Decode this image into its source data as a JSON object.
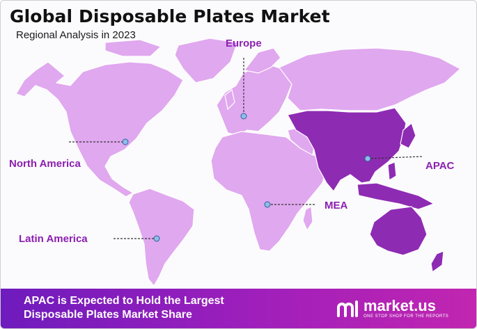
{
  "header": {
    "title": "Global Disposable Plates Market",
    "subtitle": "Regional Analysis in 2023"
  },
  "regions": [
    {
      "id": "europe",
      "label": "Europe"
    },
    {
      "id": "north-america",
      "label": "North America"
    },
    {
      "id": "apac",
      "label": "APAC",
      "highlighted": true
    },
    {
      "id": "mea",
      "label": "MEA"
    },
    {
      "id": "latin-america",
      "label": "Latin America"
    }
  ],
  "banner": {
    "line1": "APAC is Expected to Hold the Largest",
    "line2": "Disposable Plates Market Share"
  },
  "brand": {
    "name": "market.us",
    "tagline": "ONE STOP SHOP FOR THE REPORTS",
    "logo_icon": "market-us-logo-icon"
  },
  "colors": {
    "land": "#e0a8ef",
    "highlight": "#8e2bb3",
    "label": "#8b1fb0",
    "banner_start": "#6e1bbd",
    "banner_end": "#c126b0",
    "marker": "#8fbde8"
  }
}
